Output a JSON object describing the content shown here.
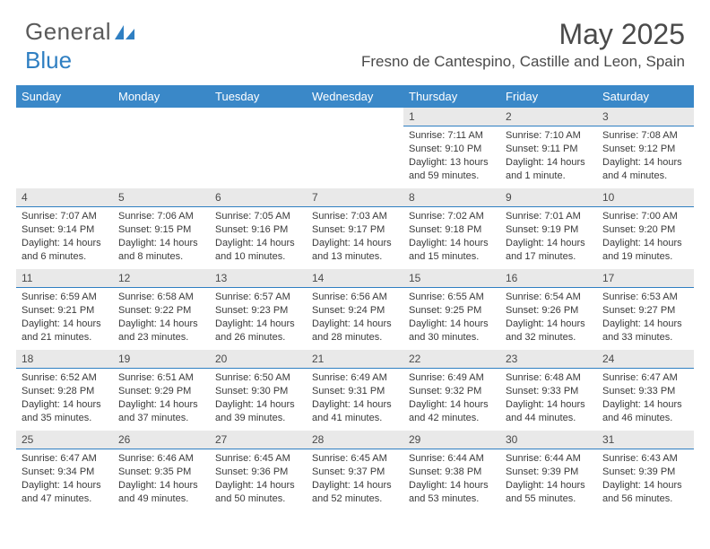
{
  "logo": {
    "text1": "General",
    "text2": "Blue"
  },
  "title": "May 2025",
  "location": "Fresno de Cantespino, Castille and Leon, Spain",
  "colors": {
    "header_bg": "#3a88c8",
    "header_text": "#ffffff",
    "daynum_bg": "#e9e9e9",
    "daynum_border": "#2f7fc2",
    "body_text": "#3a3a3a",
    "title_text": "#4a4a4a",
    "logo_blue": "#2f7fc2"
  },
  "weekdays": [
    "Sunday",
    "Monday",
    "Tuesday",
    "Wednesday",
    "Thursday",
    "Friday",
    "Saturday"
  ],
  "weeks": [
    [
      {
        "day": "",
        "lines": []
      },
      {
        "day": "",
        "lines": []
      },
      {
        "day": "",
        "lines": []
      },
      {
        "day": "",
        "lines": []
      },
      {
        "day": "1",
        "lines": [
          "Sunrise: 7:11 AM",
          "Sunset: 9:10 PM",
          "Daylight: 13 hours and 59 minutes."
        ]
      },
      {
        "day": "2",
        "lines": [
          "Sunrise: 7:10 AM",
          "Sunset: 9:11 PM",
          "Daylight: 14 hours and 1 minute."
        ]
      },
      {
        "day": "3",
        "lines": [
          "Sunrise: 7:08 AM",
          "Sunset: 9:12 PM",
          "Daylight: 14 hours and 4 minutes."
        ]
      }
    ],
    [
      {
        "day": "4",
        "lines": [
          "Sunrise: 7:07 AM",
          "Sunset: 9:14 PM",
          "Daylight: 14 hours and 6 minutes."
        ]
      },
      {
        "day": "5",
        "lines": [
          "Sunrise: 7:06 AM",
          "Sunset: 9:15 PM",
          "Daylight: 14 hours and 8 minutes."
        ]
      },
      {
        "day": "6",
        "lines": [
          "Sunrise: 7:05 AM",
          "Sunset: 9:16 PM",
          "Daylight: 14 hours and 10 minutes."
        ]
      },
      {
        "day": "7",
        "lines": [
          "Sunrise: 7:03 AM",
          "Sunset: 9:17 PM",
          "Daylight: 14 hours and 13 minutes."
        ]
      },
      {
        "day": "8",
        "lines": [
          "Sunrise: 7:02 AM",
          "Sunset: 9:18 PM",
          "Daylight: 14 hours and 15 minutes."
        ]
      },
      {
        "day": "9",
        "lines": [
          "Sunrise: 7:01 AM",
          "Sunset: 9:19 PM",
          "Daylight: 14 hours and 17 minutes."
        ]
      },
      {
        "day": "10",
        "lines": [
          "Sunrise: 7:00 AM",
          "Sunset: 9:20 PM",
          "Daylight: 14 hours and 19 minutes."
        ]
      }
    ],
    [
      {
        "day": "11",
        "lines": [
          "Sunrise: 6:59 AM",
          "Sunset: 9:21 PM",
          "Daylight: 14 hours and 21 minutes."
        ]
      },
      {
        "day": "12",
        "lines": [
          "Sunrise: 6:58 AM",
          "Sunset: 9:22 PM",
          "Daylight: 14 hours and 23 minutes."
        ]
      },
      {
        "day": "13",
        "lines": [
          "Sunrise: 6:57 AM",
          "Sunset: 9:23 PM",
          "Daylight: 14 hours and 26 minutes."
        ]
      },
      {
        "day": "14",
        "lines": [
          "Sunrise: 6:56 AM",
          "Sunset: 9:24 PM",
          "Daylight: 14 hours and 28 minutes."
        ]
      },
      {
        "day": "15",
        "lines": [
          "Sunrise: 6:55 AM",
          "Sunset: 9:25 PM",
          "Daylight: 14 hours and 30 minutes."
        ]
      },
      {
        "day": "16",
        "lines": [
          "Sunrise: 6:54 AM",
          "Sunset: 9:26 PM",
          "Daylight: 14 hours and 32 minutes."
        ]
      },
      {
        "day": "17",
        "lines": [
          "Sunrise: 6:53 AM",
          "Sunset: 9:27 PM",
          "Daylight: 14 hours and 33 minutes."
        ]
      }
    ],
    [
      {
        "day": "18",
        "lines": [
          "Sunrise: 6:52 AM",
          "Sunset: 9:28 PM",
          "Daylight: 14 hours and 35 minutes."
        ]
      },
      {
        "day": "19",
        "lines": [
          "Sunrise: 6:51 AM",
          "Sunset: 9:29 PM",
          "Daylight: 14 hours and 37 minutes."
        ]
      },
      {
        "day": "20",
        "lines": [
          "Sunrise: 6:50 AM",
          "Sunset: 9:30 PM",
          "Daylight: 14 hours and 39 minutes."
        ]
      },
      {
        "day": "21",
        "lines": [
          "Sunrise: 6:49 AM",
          "Sunset: 9:31 PM",
          "Daylight: 14 hours and 41 minutes."
        ]
      },
      {
        "day": "22",
        "lines": [
          "Sunrise: 6:49 AM",
          "Sunset: 9:32 PM",
          "Daylight: 14 hours and 42 minutes."
        ]
      },
      {
        "day": "23",
        "lines": [
          "Sunrise: 6:48 AM",
          "Sunset: 9:33 PM",
          "Daylight: 14 hours and 44 minutes."
        ]
      },
      {
        "day": "24",
        "lines": [
          "Sunrise: 6:47 AM",
          "Sunset: 9:33 PM",
          "Daylight: 14 hours and 46 minutes."
        ]
      }
    ],
    [
      {
        "day": "25",
        "lines": [
          "Sunrise: 6:47 AM",
          "Sunset: 9:34 PM",
          "Daylight: 14 hours and 47 minutes."
        ]
      },
      {
        "day": "26",
        "lines": [
          "Sunrise: 6:46 AM",
          "Sunset: 9:35 PM",
          "Daylight: 14 hours and 49 minutes."
        ]
      },
      {
        "day": "27",
        "lines": [
          "Sunrise: 6:45 AM",
          "Sunset: 9:36 PM",
          "Daylight: 14 hours and 50 minutes."
        ]
      },
      {
        "day": "28",
        "lines": [
          "Sunrise: 6:45 AM",
          "Sunset: 9:37 PM",
          "Daylight: 14 hours and 52 minutes."
        ]
      },
      {
        "day": "29",
        "lines": [
          "Sunrise: 6:44 AM",
          "Sunset: 9:38 PM",
          "Daylight: 14 hours and 53 minutes."
        ]
      },
      {
        "day": "30",
        "lines": [
          "Sunrise: 6:44 AM",
          "Sunset: 9:39 PM",
          "Daylight: 14 hours and 55 minutes."
        ]
      },
      {
        "day": "31",
        "lines": [
          "Sunrise: 6:43 AM",
          "Sunset: 9:39 PM",
          "Daylight: 14 hours and 56 minutes."
        ]
      }
    ]
  ]
}
